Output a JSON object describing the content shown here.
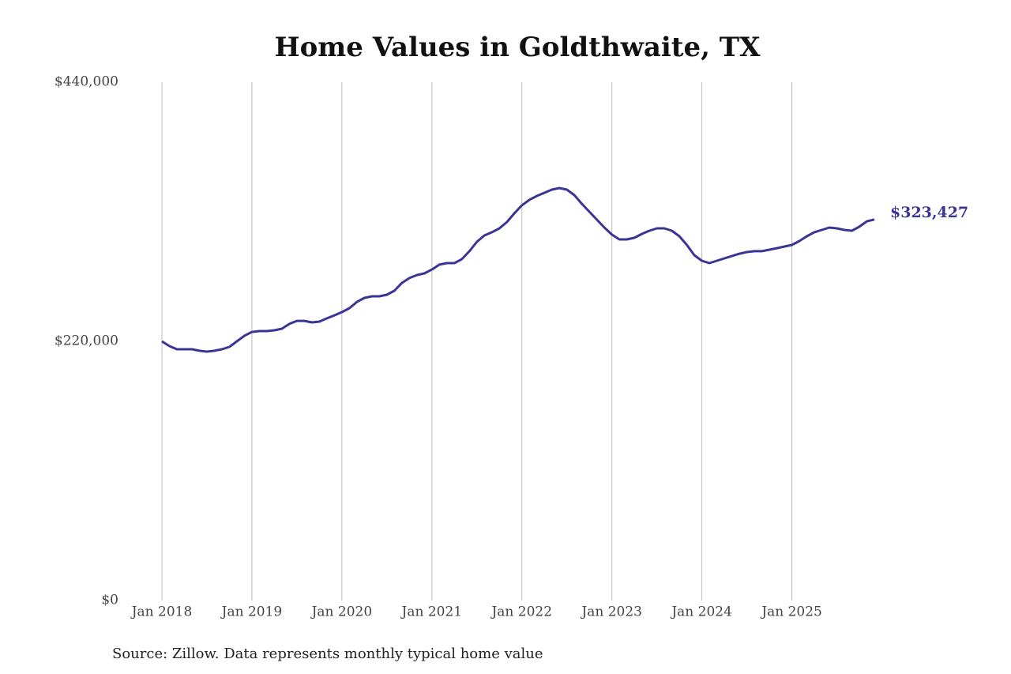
{
  "chart_data": {
    "type": "line",
    "title": "Home Values in Goldthwaite, TX",
    "source": "Source: Zillow. Data represents monthly typical home value",
    "color": "#3a3594",
    "x": [
      "2018-01",
      "2018-02",
      "2018-03",
      "2018-04",
      "2018-05",
      "2018-06",
      "2018-07",
      "2018-08",
      "2018-09",
      "2018-10",
      "2018-11",
      "2018-12",
      "2019-01",
      "2019-02",
      "2019-03",
      "2019-04",
      "2019-05",
      "2019-06",
      "2019-07",
      "2019-08",
      "2019-09",
      "2019-10",
      "2019-11",
      "2019-12",
      "2020-01",
      "2020-02",
      "2020-03",
      "2020-04",
      "2020-05",
      "2020-06",
      "2020-07",
      "2020-08",
      "2020-09",
      "2020-10",
      "2020-11",
      "2020-12",
      "2021-01",
      "2021-02",
      "2021-03",
      "2021-04",
      "2021-05",
      "2021-06",
      "2021-07",
      "2021-08",
      "2021-09",
      "2021-10",
      "2021-11",
      "2021-12",
      "2022-01",
      "2022-02",
      "2022-03",
      "2022-04",
      "2022-05",
      "2022-06",
      "2022-07",
      "2022-08",
      "2022-09",
      "2022-10",
      "2022-11",
      "2022-12",
      "2023-01",
      "2023-02",
      "2023-03",
      "2023-04",
      "2023-05",
      "2023-06",
      "2023-07",
      "2023-08",
      "2023-09",
      "2023-10",
      "2023-11",
      "2023-12",
      "2024-01",
      "2024-02",
      "2024-03",
      "2024-04",
      "2024-05",
      "2024-06",
      "2024-07",
      "2024-08",
      "2024-09",
      "2024-10",
      "2024-11",
      "2024-12",
      "2025-01",
      "2025-02",
      "2025-03",
      "2025-04",
      "2025-05",
      "2025-06",
      "2025-07",
      "2025-08",
      "2025-09",
      "2025-10",
      "2025-11",
      "2025-12"
    ],
    "values": [
      220000,
      216000,
      213300,
      213300,
      213300,
      212000,
      211300,
      212000,
      213300,
      215300,
      220000,
      224700,
      228000,
      228700,
      228700,
      229400,
      230700,
      234800,
      237400,
      237400,
      236100,
      236800,
      239500,
      242100,
      244800,
      248200,
      253500,
      256900,
      258200,
      258200,
      259600,
      262900,
      269600,
      273700,
      276300,
      277700,
      281000,
      285100,
      286400,
      286400,
      289800,
      296500,
      304500,
      309900,
      312600,
      315900,
      321300,
      328700,
      335400,
      340100,
      343400,
      346100,
      348800,
      350100,
      348800,
      344100,
      336700,
      330000,
      323300,
      316600,
      310600,
      306500,
      306500,
      307900,
      311200,
      313900,
      315900,
      315900,
      313900,
      309200,
      301800,
      293100,
      288400,
      286400,
      288400,
      290400,
      292400,
      294400,
      295800,
      296500,
      296500,
      297800,
      299100,
      300500,
      301800,
      305200,
      309200,
      312600,
      314600,
      316600,
      315900,
      314600,
      313900,
      317300,
      321900,
      323427
    ],
    "value_labels": [
      null,
      null,
      null,
      null,
      null,
      null,
      null,
      null,
      null,
      null,
      null,
      null,
      null,
      null,
      null,
      null,
      null,
      null,
      null,
      null,
      null,
      null,
      null,
      null,
      null,
      null,
      null,
      null,
      null,
      null,
      null,
      null,
      null,
      null,
      null,
      null,
      null,
      null,
      null,
      null,
      null,
      null,
      null,
      null,
      null,
      null,
      null,
      null,
      null,
      null,
      null,
      null,
      null,
      null,
      null,
      null,
      null,
      null,
      null,
      null,
      null,
      null,
      null,
      null,
      null,
      null,
      null,
      null,
      null,
      null,
      null,
      null,
      null,
      null,
      null,
      null,
      null,
      null,
      null,
      null,
      null,
      null,
      null,
      null,
      null,
      null,
      null,
      null,
      null,
      null,
      null,
      null,
      null,
      null,
      null,
      "$323,427"
    ],
    "xlim": [
      "2018-01",
      "2025-12"
    ],
    "xticks": [
      {
        "value": "2018-01",
        "label": "Jan 2018"
      },
      {
        "value": "2019-01",
        "label": "Jan 2019"
      },
      {
        "value": "2020-01",
        "label": "Jan 2020"
      },
      {
        "value": "2021-01",
        "label": "Jan 2021"
      },
      {
        "value": "2022-01",
        "label": "Jan 2022"
      },
      {
        "value": "2023-01",
        "label": "Jan 2023"
      },
      {
        "value": "2024-01",
        "label": "Jan 2024"
      },
      {
        "value": "2025-01",
        "label": "Jan 2025"
      }
    ],
    "ylim": [
      0,
      440000
    ],
    "yticks": [
      {
        "value": 0,
        "label": "$0"
      },
      {
        "value": 220000,
        "label": "$220,000"
      },
      {
        "value": 440000,
        "label": "$440,000"
      }
    ],
    "grid": "x"
  }
}
